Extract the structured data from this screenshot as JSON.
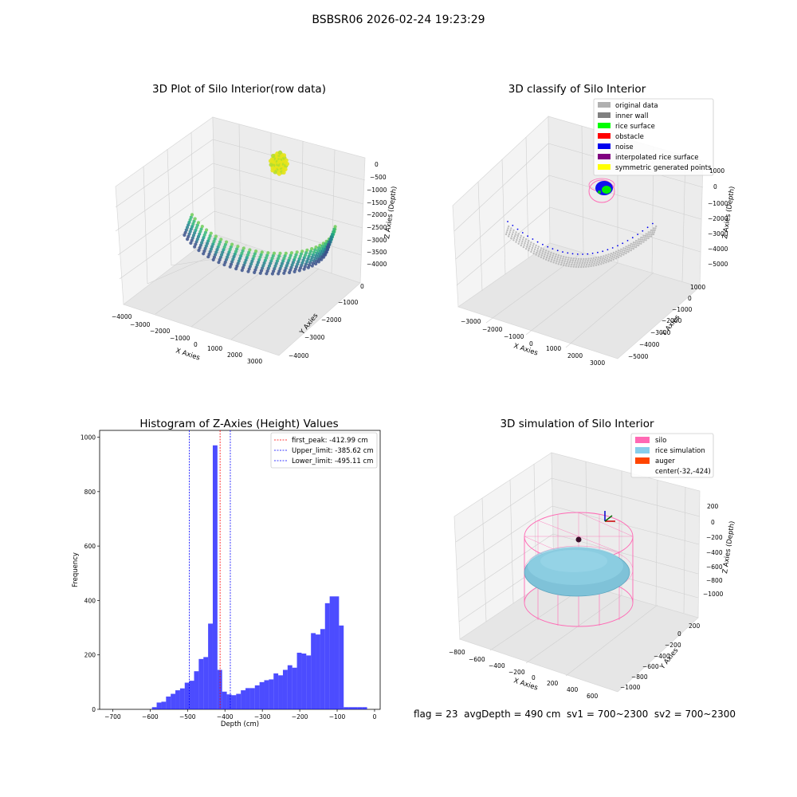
{
  "figure": {
    "suptitle": "BSBSR06 2026-02-24 19:23:29",
    "footer": "flag = 23  avgDepth = 490 cm  sv1 = 700~2300  sv2 = 700~2300"
  },
  "panels": {
    "raw": {
      "title": "3D Plot of Silo Interior(row data)",
      "xlabel": "X Axies",
      "ylabel": "Y Axies",
      "zlabel": "Z Axies (Depth)",
      "xticks": [
        "−4000",
        "−3000",
        "−2000",
        "−1000",
        "0",
        "1000",
        "2000",
        "3000"
      ],
      "yticks": [
        "0",
        "−1000",
        "−2000",
        "−3000",
        "−4000"
      ],
      "zticks": [
        "0",
        "−500",
        "−1000",
        "−1500",
        "−2000",
        "−2500",
        "−3000",
        "−3500",
        "−4000"
      ]
    },
    "classify": {
      "title": "3D classify of Silo Interior",
      "xlabel": "X Axies",
      "ylabel": "Y Axies",
      "zlabel": "Z Axies (Depth)",
      "xticks": [
        "−3000",
        "−2000",
        "−1000",
        "0",
        "1000",
        "2000",
        "3000"
      ],
      "yticks": [
        "1000",
        "0",
        "−1000",
        "−2000",
        "−3000",
        "−4000",
        "−5000"
      ],
      "zticks": [
        "1000",
        "0",
        "−1000",
        "−2000",
        "−3000",
        "−4000",
        "−5000"
      ],
      "legend": [
        {
          "label": "original data",
          "color": "#b0b0b0"
        },
        {
          "label": "inner wall",
          "color": "#808080"
        },
        {
          "label": "rice surface",
          "color": "#00ff00"
        },
        {
          "label": "obstacle",
          "color": "#ff0000"
        },
        {
          "label": "noise",
          "color": "#0000ee"
        },
        {
          "label": "interpolated rice surface",
          "color": "#800080"
        },
        {
          "label": "symmetric generated points",
          "color": "#ffff00"
        }
      ]
    },
    "simulation": {
      "title": "3D simulation of Silo Interior",
      "xlabel": "X Axies",
      "ylabel": "Y Axies",
      "zlabel": "Z Axies (Depth)",
      "xticks": [
        "−800",
        "−600",
        "−400",
        "−200",
        "0",
        "200",
        "400",
        "600"
      ],
      "yticks": [
        "200",
        "0",
        "−200",
        "−400",
        "−600",
        "−800",
        "−1000"
      ],
      "zticks": [
        "200",
        "0",
        "−200",
        "−400",
        "−600",
        "−800",
        "−1000"
      ],
      "legend": [
        {
          "label": "silo",
          "color": "#ff69b4"
        },
        {
          "label": "rice simulation",
          "color": "#87ceeb"
        },
        {
          "label": "auger",
          "color": "#ff4500"
        },
        {
          "label": "center(-32,-424)",
          "color": ""
        }
      ]
    }
  },
  "chart_data": {
    "type": "bar",
    "title": "Histogram of Z-Axies (Height) Values",
    "xlabel": "Depth (cm)",
    "ylabel": "Frequency",
    "xlim": [
      -735,
      15
    ],
    "ylim": [
      0,
      1025
    ],
    "xticks": [
      -700,
      -600,
      -500,
      -400,
      -300,
      -200,
      -100,
      0
    ],
    "yticks": [
      0,
      200,
      400,
      600,
      800,
      1000
    ],
    "bin_width": 12.5,
    "bins_start": [
      -595,
      -582.5,
      -570,
      -557.5,
      -545,
      -532.5,
      -520,
      -507.5,
      -495,
      -482.5,
      -470,
      -457.5,
      -445,
      -432.5,
      -420,
      -407.5,
      -395,
      -382.5,
      -370,
      -357.5,
      -345,
      -332.5,
      -320,
      -307.5,
      -295,
      -282.5,
      -270,
      -257.5,
      -245,
      -232.5,
      -220,
      -207.5,
      -195,
      -182.5,
      -170,
      -157.5,
      -145,
      -132.5,
      -120,
      -107.5,
      -95,
      -82.5,
      -70,
      -57.5,
      -45,
      -32.5
    ],
    "values": [
      8,
      25,
      28,
      47,
      57,
      70,
      77,
      98,
      105,
      140,
      185,
      192,
      315,
      970,
      145,
      65,
      55,
      52,
      57,
      70,
      78,
      78,
      88,
      100,
      107,
      110,
      132,
      125,
      145,
      162,
      153,
      208,
      205,
      198,
      280,
      275,
      295,
      390,
      415,
      415,
      308,
      8,
      8,
      8,
      8,
      8
    ],
    "color": "#0000ff",
    "lines": [
      {
        "label": "first_peak: -412.99 cm",
        "x": -412.99,
        "color": "#ff0000"
      },
      {
        "label": "Upper_limit: -385.62 cm",
        "x": -385.62,
        "color": "#0000ff"
      },
      {
        "label": "Lower_limit: -495.11 cm",
        "x": -495.11,
        "color": "#0000ff"
      }
    ],
    "legend_position": "upper-right",
    "grid": false
  }
}
